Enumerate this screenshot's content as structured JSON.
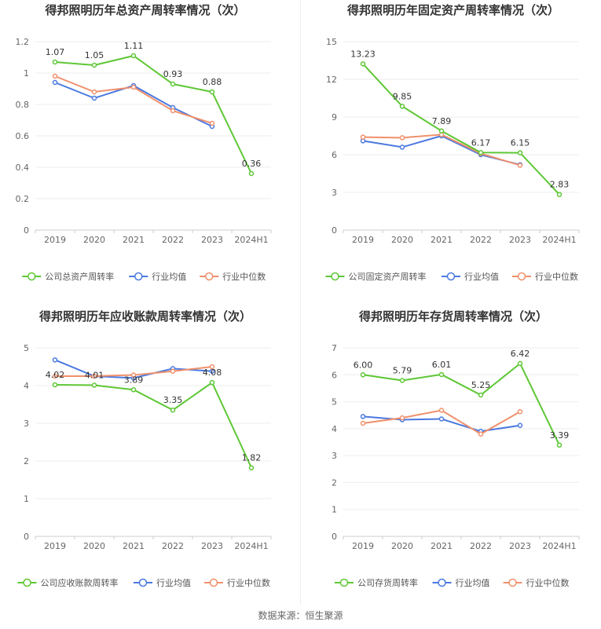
{
  "colors": {
    "company": "#5ec735",
    "industry_avg": "#4a79e0",
    "industry_median": "#f0906c"
  },
  "legend_common": {
    "avg": "行业均值",
    "median": "行业中位数"
  },
  "source": "数据来源：恒生聚源",
  "chart_data": [
    {
      "type": "line",
      "title": "得邦照明历年总资产周转率情况（次）",
      "categories": [
        "2019",
        "2020",
        "2021",
        "2022",
        "2023",
        "2024H1"
      ],
      "ylim": [
        0,
        1.2
      ],
      "yticks": [
        "0",
        "0.2",
        "0.4",
        "0.6",
        "0.8",
        "1",
        "1.2"
      ],
      "ytick_values": [
        0,
        0.2,
        0.4,
        0.6,
        0.8,
        1.0,
        1.2
      ],
      "series": [
        {
          "name": "公司总资产周转率",
          "key": "company",
          "values": [
            1.07,
            1.05,
            1.11,
            0.93,
            0.88,
            0.36
          ],
          "labels": [
            "1.07",
            "1.05",
            "1.11",
            "0.93",
            "0.88",
            "0.36"
          ]
        },
        {
          "name": "行业均值",
          "key": "industry_avg",
          "values": [
            0.94,
            0.84,
            0.92,
            0.78,
            0.66,
            null
          ]
        },
        {
          "name": "行业中位数",
          "key": "industry_median",
          "values": [
            0.98,
            0.88,
            0.91,
            0.76,
            0.68,
            null
          ]
        }
      ]
    },
    {
      "type": "line",
      "title": "得邦照明历年固定资产周转率情况（次）",
      "categories": [
        "2019",
        "2020",
        "2021",
        "2022",
        "2023",
        "2024H1"
      ],
      "ylim": [
        0,
        15
      ],
      "yticks": [
        "0",
        "3",
        "6",
        "9",
        "12",
        "15"
      ],
      "ytick_values": [
        0,
        3,
        6,
        9,
        12,
        15
      ],
      "series": [
        {
          "name": "公司固定资产周转率",
          "key": "company",
          "values": [
            13.23,
            9.85,
            7.89,
            6.17,
            6.15,
            2.83
          ],
          "labels": [
            "13.23",
            "9.85",
            "7.89",
            "6.17",
            "6.15",
            "2.83"
          ]
        },
        {
          "name": "行业均值",
          "key": "industry_avg",
          "values": [
            7.1,
            6.6,
            7.5,
            6.0,
            5.2,
            null
          ]
        },
        {
          "name": "行业中位数",
          "key": "industry_median",
          "values": [
            7.4,
            7.35,
            7.6,
            6.1,
            5.15,
            null
          ]
        }
      ]
    },
    {
      "type": "line",
      "title": "得邦照明历年应收账款周转率情况（次）",
      "categories": [
        "2019",
        "2020",
        "2021",
        "2022",
        "2023",
        "2024H1"
      ],
      "ylim": [
        0,
        5
      ],
      "yticks": [
        "0",
        "1",
        "2",
        "3",
        "4",
        "5"
      ],
      "ytick_values": [
        0,
        1,
        2,
        3,
        4,
        5
      ],
      "series": [
        {
          "name": "公司应收账款周转率",
          "key": "company",
          "values": [
            4.02,
            4.01,
            3.89,
            3.35,
            4.08,
            1.82
          ],
          "labels": [
            "4.02",
            "4.01",
            "3.89",
            "3.35",
            "4.08",
            "1.82"
          ]
        },
        {
          "name": "行业均值",
          "key": "industry_avg",
          "values": [
            4.68,
            4.25,
            4.2,
            4.45,
            4.38,
            null
          ]
        },
        {
          "name": "行业中位数",
          "key": "industry_median",
          "values": [
            4.25,
            4.25,
            4.28,
            4.38,
            4.5,
            null
          ]
        }
      ]
    },
    {
      "type": "line",
      "title": "得邦照明历年存货周转率情况（次）",
      "categories": [
        "2019",
        "2020",
        "2021",
        "2022",
        "2023",
        "2024H1"
      ],
      "ylim": [
        0,
        7
      ],
      "yticks": [
        "0",
        "1",
        "2",
        "3",
        "4",
        "5",
        "6",
        "7"
      ],
      "ytick_values": [
        0,
        1,
        2,
        3,
        4,
        5,
        6,
        7
      ],
      "series": [
        {
          "name": "公司存货周转率",
          "key": "company",
          "values": [
            6.0,
            5.79,
            6.01,
            5.25,
            6.42,
            3.39
          ],
          "labels": [
            "6.00",
            "5.79",
            "6.01",
            "5.25",
            "6.42",
            "3.39"
          ]
        },
        {
          "name": "行业均值",
          "key": "industry_avg",
          "values": [
            4.45,
            4.33,
            4.36,
            3.9,
            4.12,
            null
          ]
        },
        {
          "name": "行业中位数",
          "key": "industry_median",
          "values": [
            4.2,
            4.4,
            4.68,
            3.8,
            4.63,
            null
          ]
        }
      ]
    }
  ]
}
